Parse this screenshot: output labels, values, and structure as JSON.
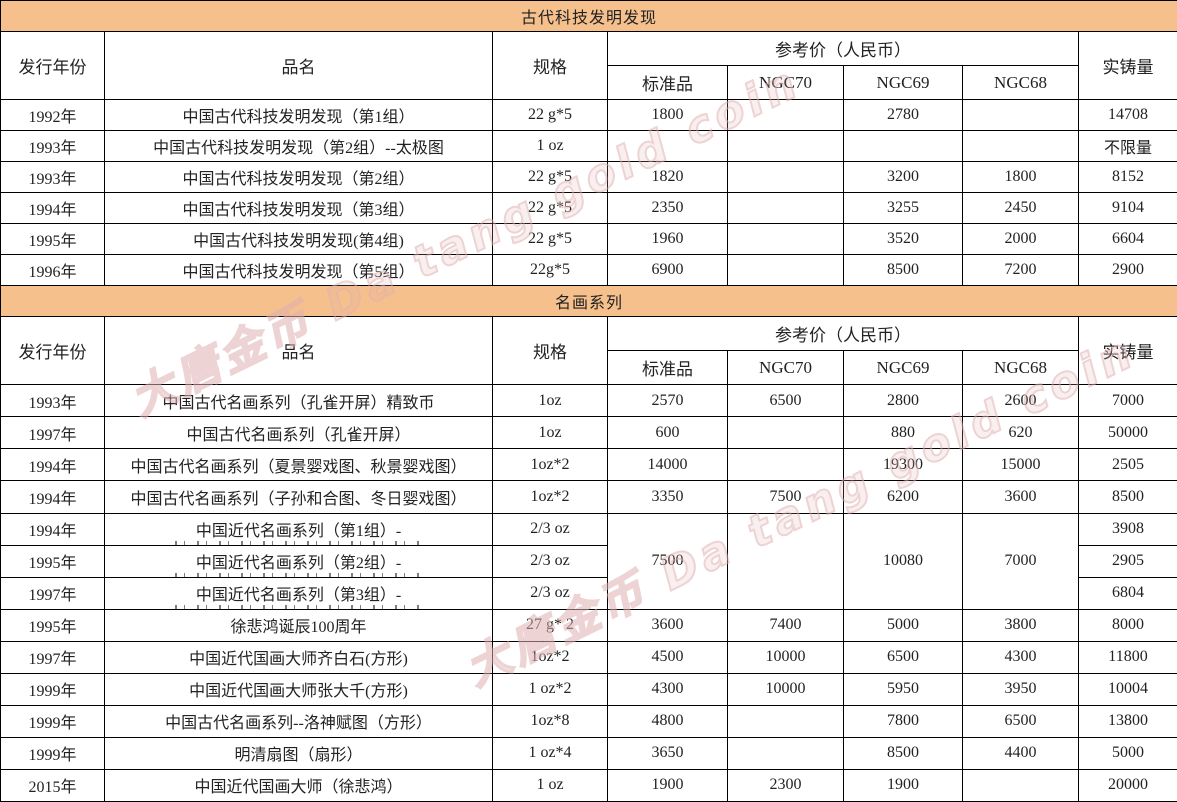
{
  "colors": {
    "section_band": "#f6c08d",
    "section_band_text": "#7c3a0e",
    "grid_line": "#000000",
    "body_text": "#222222",
    "watermark": "#dfb0b0"
  },
  "watermark": {
    "text": "大唐金币 Da tang gold coin"
  },
  "table": {
    "header": {
      "year": "发行年份",
      "name": "品名",
      "spec": "规格",
      "price_group": "参考价（人民币）",
      "mint": "实铸量",
      "subs": [
        "标准品",
        "NGC70",
        "NGC69",
        "NGC68"
      ]
    },
    "sections": [
      {
        "title": "古代科技发明发现",
        "rows": [
          {
            "year": "1992年",
            "name": "中国古代科技发明发现（第1组）",
            "spec": "22 g*5",
            "prices": [
              "1800",
              "",
              "2780",
              ""
            ],
            "mint": "14708"
          },
          {
            "year": "1993年",
            "name": "中国古代科技发明发现（第2组）--太极图",
            "spec": "1 oz",
            "prices": [
              "",
              "",
              "",
              ""
            ],
            "mint": "不限量"
          },
          {
            "year": "1993年",
            "name": "中国古代科技发明发现（第2组）",
            "spec": "22 g*5",
            "prices": [
              "1820",
              "",
              "3200",
              "1800"
            ],
            "mint": "8152"
          },
          {
            "year": "1994年",
            "name": "中国古代科技发明发现（第3组）",
            "spec": "22 g*5",
            "prices": [
              "2350",
              "",
              "3255",
              "2450"
            ],
            "mint": "9104"
          },
          {
            "year": "1995年",
            "name": "中国古代科技发明发现(第4组)",
            "spec": "22 g*5",
            "prices": [
              "1960",
              "",
              "3520",
              "2000"
            ],
            "mint": "6604"
          },
          {
            "year": "1996年",
            "name": "中国古代科技发明发现（第5组）",
            "spec": "22g*5",
            "prices": [
              "6900",
              "",
              "8500",
              "7200"
            ],
            "mint": "2900"
          }
        ]
      },
      {
        "title": "名画系列",
        "rows": [
          {
            "year": "1993年",
            "name": "中国古代名画系列（孔雀开屏）精致币",
            "spec": "1oz",
            "prices": [
              "2570",
              "6500",
              "2800",
              "2600"
            ],
            "mint": "7000"
          },
          {
            "year": "1997年",
            "name": "中国古代名画系列（孔雀开屏）",
            "spec": "1oz",
            "prices": [
              "600",
              "",
              "880",
              "620"
            ],
            "mint": "50000"
          },
          {
            "year": "1994年",
            "name": "中国古代名画系列（夏景婴戏图、秋景婴戏图）",
            "spec": "1oz*2",
            "prices": [
              "14000",
              "",
              "19300",
              "15000"
            ],
            "mint": "2505"
          },
          {
            "year": "1994年",
            "name": "中国古代名画系列（子孙和合图、冬日婴戏图）",
            "spec": "1oz*2",
            "prices": [
              "3350",
              "7500",
              "6200",
              "3600"
            ],
            "mint": "8500"
          },
          {
            "year": "1994年",
            "name": "中国近代名画系列（第1组）-",
            "spec": "2/3 oz",
            "merged": {
              "values": [
                "7500",
                "",
                "10080",
                "7000"
              ],
              "span": 3
            },
            "mint": "3908",
            "clipped": true
          },
          {
            "year": "1995年",
            "name": "中国近代名画系列（第2组）-",
            "spec": "2/3 oz",
            "prices": null,
            "mint": "2905",
            "clipped": true
          },
          {
            "year": "1997年",
            "name": "中国近代名画系列（第3组）-",
            "spec": "2/3 oz",
            "prices": null,
            "mint": "6804",
            "clipped": true
          },
          {
            "year": "1995年",
            "name": "徐悲鸿诞辰100周年",
            "spec": "27 g* 2",
            "prices": [
              "3600",
              "7400",
              "5000",
              "3800"
            ],
            "mint": "8000"
          },
          {
            "year": "1997年",
            "name": "中国近代国画大师齐白石(方形)",
            "spec": "1oz*2",
            "prices": [
              "4500",
              "10000",
              "6500",
              "4300"
            ],
            "mint": "11800"
          },
          {
            "year": "1999年",
            "name": "中国近代国画大师张大千(方形)",
            "spec": "1 oz*2",
            "prices": [
              "4300",
              "10000",
              "5950",
              "3950"
            ],
            "mint": "10004"
          },
          {
            "year": "1999年",
            "name": "中国古代名画系列--洛神赋图（方形）",
            "spec": "1oz*8",
            "prices": [
              "4800",
              "",
              "7800",
              "6500"
            ],
            "mint": "13800"
          },
          {
            "year": "1999年",
            "name": "明清扇图（扇形）",
            "spec": "1 oz*4",
            "prices": [
              "3650",
              "",
              "8500",
              "4400"
            ],
            "mint": "5000"
          },
          {
            "year": "2015年",
            "name": "中国近代国画大师（徐悲鸿）",
            "spec": "1 oz",
            "prices": [
              "1900",
              "2300",
              "1900",
              ""
            ],
            "mint": "20000"
          }
        ]
      }
    ]
  }
}
